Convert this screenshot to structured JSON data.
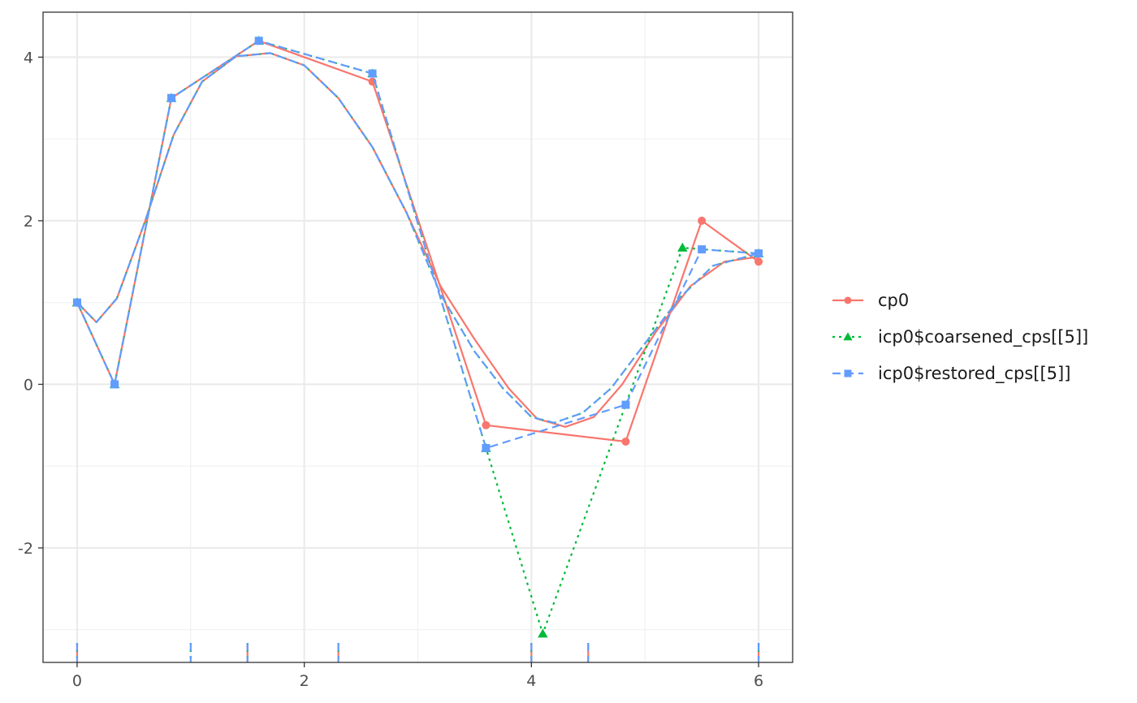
{
  "chart_data": {
    "type": "line",
    "title": "",
    "xlabel": "",
    "ylabel": "",
    "xlim": [
      -0.3,
      6.3
    ],
    "ylim": [
      -3.4,
      4.55
    ],
    "x_ticks": [
      0,
      2,
      4,
      6
    ],
    "y_ticks": [
      -2,
      0,
      2,
      4
    ],
    "x_tick_labels": [
      "0",
      "2",
      "4",
      "6"
    ],
    "y_tick_labels": [
      "-2",
      "0",
      "2",
      "4"
    ],
    "grid": true,
    "legend_position": "right",
    "series": [
      {
        "name": "cp0",
        "color": "#F8766D",
        "dash": "solid",
        "marker": "circle",
        "control_points": [
          {
            "x": 0,
            "y": 1
          },
          {
            "x": 0.33,
            "y": 0
          },
          {
            "x": 0.83,
            "y": 3.5
          },
          {
            "x": 1.6,
            "y": 4.2
          },
          {
            "x": 2.6,
            "y": 3.7
          },
          {
            "x": 3.6,
            "y": -0.5
          },
          {
            "x": 4.83,
            "y": -0.7
          },
          {
            "x": 5.5,
            "y": 2
          },
          {
            "x": 6,
            "y": 1.5
          }
        ],
        "curve": [
          {
            "x": 0,
            "y": 1
          },
          {
            "x": 0.17,
            "y": 0.76
          },
          {
            "x": 0.35,
            "y": 1.05
          },
          {
            "x": 0.6,
            "y": 2.0
          },
          {
            "x": 0.85,
            "y": 3.05
          },
          {
            "x": 1.1,
            "y": 3.7
          },
          {
            "x": 1.4,
            "y": 4.01
          },
          {
            "x": 1.7,
            "y": 4.05
          },
          {
            "x": 2.0,
            "y": 3.9
          },
          {
            "x": 2.3,
            "y": 3.5
          },
          {
            "x": 2.6,
            "y": 2.9
          },
          {
            "x": 2.9,
            "y": 2.1
          },
          {
            "x": 3.2,
            "y": 1.2
          },
          {
            "x": 3.5,
            "y": 0.55
          },
          {
            "x": 3.8,
            "y": -0.05
          },
          {
            "x": 4.05,
            "y": -0.42
          },
          {
            "x": 4.3,
            "y": -0.52
          },
          {
            "x": 4.55,
            "y": -0.4
          },
          {
            "x": 4.8,
            "y": 0.0
          },
          {
            "x": 5.1,
            "y": 0.65
          },
          {
            "x": 5.4,
            "y": 1.2
          },
          {
            "x": 5.7,
            "y": 1.5
          },
          {
            "x": 6,
            "y": 1.56
          }
        ],
        "knots": [
          0,
          1.5,
          2.3,
          4,
          4.5,
          6
        ]
      },
      {
        "name": "icp0$coarsened_cps[[5]]",
        "color": "#00BA38",
        "dash": "dotted",
        "marker": "triangle",
        "control_points": [
          {
            "x": 0,
            "y": 1
          },
          {
            "x": 0.33,
            "y": 0
          },
          {
            "x": 0.83,
            "y": 3.5
          },
          {
            "x": 1.6,
            "y": 4.2
          },
          {
            "x": 2.6,
            "y": 3.8
          },
          {
            "x": 3.6,
            "y": -0.78
          },
          {
            "x": 4.1,
            "y": -3.05
          },
          {
            "x": 5.33,
            "y": 1.67
          },
          {
            "x": 6,
            "y": 1.6
          }
        ],
        "curve": [
          {
            "x": 0,
            "y": 1
          },
          {
            "x": 0.17,
            "y": 0.76
          },
          {
            "x": 0.35,
            "y": 1.05
          },
          {
            "x": 0.6,
            "y": 2.0
          },
          {
            "x": 0.85,
            "y": 3.05
          },
          {
            "x": 1.1,
            "y": 3.7
          },
          {
            "x": 1.4,
            "y": 4.01
          },
          {
            "x": 1.7,
            "y": 4.05
          },
          {
            "x": 2.0,
            "y": 3.9
          },
          {
            "x": 2.3,
            "y": 3.5
          },
          {
            "x": 2.6,
            "y": 2.9
          },
          {
            "x": 2.9,
            "y": 2.1
          },
          {
            "x": 3.2,
            "y": 1.1
          },
          {
            "x": 3.5,
            "y": 0.4
          },
          {
            "x": 3.75,
            "y": -0.05
          },
          {
            "x": 4.0,
            "y": -0.4
          },
          {
            "x": 4.2,
            "y": -0.47
          },
          {
            "x": 4.45,
            "y": -0.35
          },
          {
            "x": 4.7,
            "y": -0.05
          },
          {
            "x": 5.0,
            "y": 0.5
          },
          {
            "x": 5.3,
            "y": 1.05
          },
          {
            "x": 5.6,
            "y": 1.45
          },
          {
            "x": 6,
            "y": 1.6
          }
        ],
        "knots": [
          0,
          1,
          1.5,
          2.3,
          4,
          6
        ]
      },
      {
        "name": "icp0$restored_cps[[5]]",
        "color": "#619CFF",
        "dash": "dashed",
        "marker": "square",
        "control_points": [
          {
            "x": 0,
            "y": 1
          },
          {
            "x": 0.33,
            "y": 0
          },
          {
            "x": 0.83,
            "y": 3.5
          },
          {
            "x": 1.6,
            "y": 4.2
          },
          {
            "x": 2.6,
            "y": 3.8
          },
          {
            "x": 3.6,
            "y": -0.78
          },
          {
            "x": 4.83,
            "y": -0.25
          },
          {
            "x": 5.5,
            "y": 1.65
          },
          {
            "x": 6,
            "y": 1.6
          }
        ],
        "curve": [
          {
            "x": 0,
            "y": 1
          },
          {
            "x": 0.17,
            "y": 0.76
          },
          {
            "x": 0.35,
            "y": 1.05
          },
          {
            "x": 0.6,
            "y": 2.0
          },
          {
            "x": 0.85,
            "y": 3.05
          },
          {
            "x": 1.1,
            "y": 3.7
          },
          {
            "x": 1.4,
            "y": 4.01
          },
          {
            "x": 1.7,
            "y": 4.05
          },
          {
            "x": 2.0,
            "y": 3.9
          },
          {
            "x": 2.3,
            "y": 3.5
          },
          {
            "x": 2.6,
            "y": 2.9
          },
          {
            "x": 2.9,
            "y": 2.1
          },
          {
            "x": 3.2,
            "y": 1.1
          },
          {
            "x": 3.5,
            "y": 0.4
          },
          {
            "x": 3.75,
            "y": -0.05
          },
          {
            "x": 4.0,
            "y": -0.4
          },
          {
            "x": 4.2,
            "y": -0.47
          },
          {
            "x": 4.45,
            "y": -0.35
          },
          {
            "x": 4.7,
            "y": -0.05
          },
          {
            "x": 5.0,
            "y": 0.5
          },
          {
            "x": 5.3,
            "y": 1.05
          },
          {
            "x": 5.6,
            "y": 1.45
          },
          {
            "x": 6,
            "y": 1.6
          }
        ],
        "knots": [
          0,
          1,
          1.5,
          2.3,
          4,
          4.5,
          6
        ]
      }
    ]
  }
}
